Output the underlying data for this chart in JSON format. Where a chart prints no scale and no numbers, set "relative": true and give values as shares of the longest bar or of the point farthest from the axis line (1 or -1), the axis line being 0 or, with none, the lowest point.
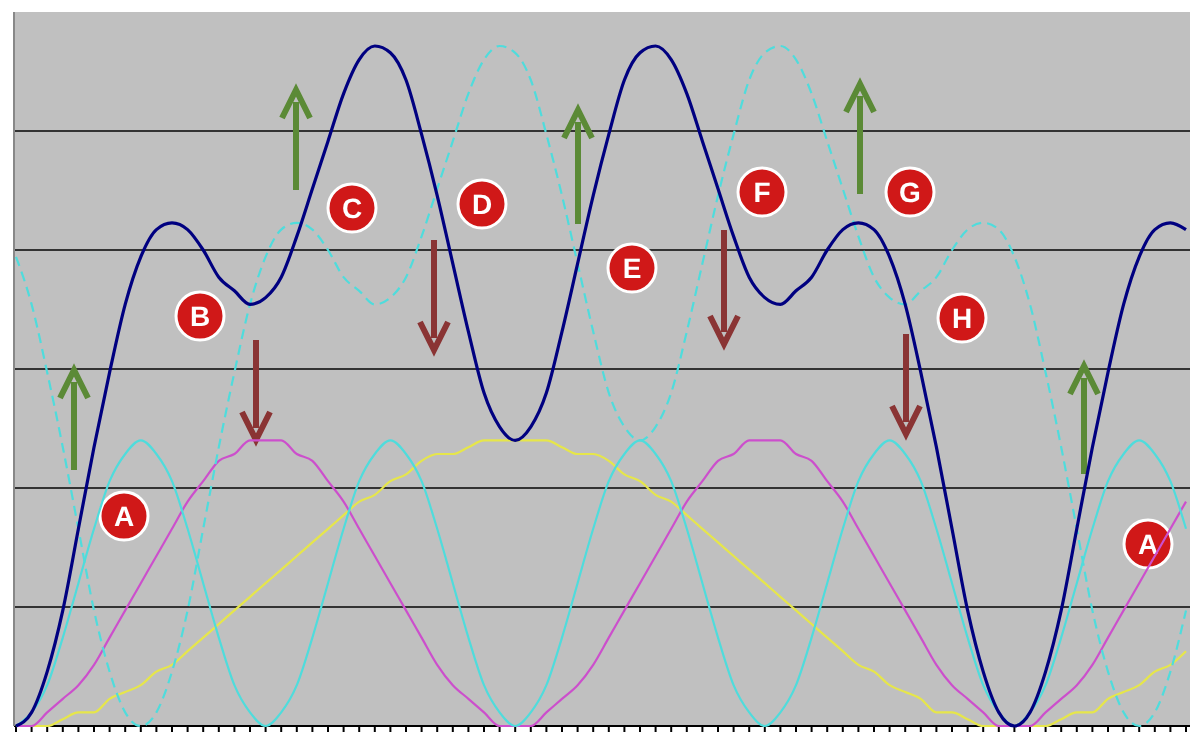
{
  "chart_data": {
    "type": "line",
    "relative": true,
    "grid": "y",
    "line_style": "solid",
    "categories": [
      null,
      null,
      null,
      null,
      null,
      null,
      null,
      null,
      null,
      null,
      null,
      null,
      null,
      null,
      null,
      null,
      null,
      null,
      null,
      null,
      null,
      null,
      null,
      null,
      null,
      null,
      null,
      null,
      null,
      null,
      null,
      null,
      null,
      null,
      null,
      null,
      null,
      null,
      null,
      null,
      null,
      null,
      null,
      null,
      null,
      null,
      null,
      null,
      null,
      null,
      null,
      null,
      null,
      null,
      null,
      null,
      null,
      null,
      null,
      null,
      null,
      null,
      null,
      null,
      null,
      null,
      null,
      null,
      null,
      null,
      null,
      null,
      null,
      null,
      null,
      null
    ],
    "series": [
      {
        "color": "#e6e64a",
        "values": [
          0,
          0,
          0,
          0.01,
          0.02,
          0.02,
          0.04,
          0.05,
          0.06,
          0.08,
          0.09,
          0.11,
          0.13,
          0.15,
          0.17,
          0.19,
          0.21,
          0.23,
          0.25,
          0.27,
          0.29,
          0.31,
          0.33,
          0.34,
          0.36,
          0.37,
          0.39,
          0.4,
          0.4,
          0.41,
          0.42,
          0.42,
          0.42,
          0.42,
          0.42,
          0.41,
          0.4,
          0.4,
          0.39,
          0.37,
          0.36,
          0.34,
          0.33,
          0.31,
          0.29,
          0.27,
          0.25,
          0.23,
          0.21,
          0.19,
          0.17,
          0.15,
          0.13,
          0.11,
          0.09,
          0.08,
          0.06,
          0.05,
          0.04,
          0.02,
          0.02,
          0.01,
          0,
          0,
          0,
          0,
          0,
          0.01,
          0.02,
          0.02,
          0.04,
          0.05,
          0.06,
          0.08,
          0.09,
          0.11
        ]
      },
      {
        "color": "#cc4fcc",
        "values": [
          0,
          0,
          0.02,
          0.04,
          0.06,
          0.09,
          0.13,
          0.17,
          0.21,
          0.25,
          0.29,
          0.33,
          0.36,
          0.39,
          0.4,
          0.42,
          0.42,
          0.42,
          0.4,
          0.39,
          0.36,
          0.33,
          0.29,
          0.25,
          0.21,
          0.17,
          0.13,
          0.09,
          0.06,
          0.04,
          0.02,
          0,
          0,
          0,
          0.02,
          0.04,
          0.06,
          0.09,
          0.13,
          0.17,
          0.21,
          0.25,
          0.29,
          0.33,
          0.36,
          0.39,
          0.4,
          0.42,
          0.42,
          0.42,
          0.4,
          0.39,
          0.36,
          0.33,
          0.29,
          0.25,
          0.21,
          0.17,
          0.13,
          0.09,
          0.06,
          0.04,
          0.02,
          0,
          0,
          0,
          0.02,
          0.04,
          0.06,
          0.09,
          0.13,
          0.17,
          0.21,
          0.25,
          0.29,
          0.33
        ]
      },
      {
        "color": "#4fdcdc",
        "values": [
          0,
          0.02,
          0.06,
          0.13,
          0.21,
          0.29,
          0.36,
          0.4,
          0.42,
          0.4,
          0.36,
          0.29,
          0.21,
          0.13,
          0.06,
          0.02,
          0,
          0.02,
          0.06,
          0.13,
          0.21,
          0.29,
          0.36,
          0.4,
          0.42,
          0.4,
          0.36,
          0.29,
          0.21,
          0.13,
          0.06,
          0.02,
          0,
          0.02,
          0.06,
          0.13,
          0.21,
          0.29,
          0.36,
          0.4,
          0.42,
          0.4,
          0.36,
          0.29,
          0.21,
          0.13,
          0.06,
          0.02,
          0,
          0.02,
          0.06,
          0.13,
          0.21,
          0.29,
          0.36,
          0.4,
          0.42,
          0.4,
          0.36,
          0.29,
          0.21,
          0.13,
          0.06,
          0.02,
          0,
          0.02,
          0.06,
          0.13,
          0.21,
          0.29,
          0.36,
          0.4,
          0.42,
          0.4,
          0.36,
          0.29
        ]
      },
      {
        "color": "#4fdcdc",
        "line_style": "dashed",
        "values": [
          0.69,
          0.62,
          0.52,
          0.41,
          0.29,
          0.17,
          0.08,
          0.02,
          0,
          0.02,
          0.08,
          0.17,
          0.29,
          0.41,
          0.52,
          0.62,
          0.69,
          0.73,
          0.74,
          0.73,
          0.7,
          0.66,
          0.64,
          0.62,
          0.63,
          0.66,
          0.72,
          0.79,
          0.86,
          0.93,
          0.98,
          1,
          0.99,
          0.95,
          0.87,
          0.78,
          0.68,
          0.58,
          0.49,
          0.44,
          0.42,
          0.44,
          0.49,
          0.58,
          0.68,
          0.78,
          0.87,
          0.95,
          0.99,
          1,
          0.98,
          0.93,
          0.86,
          0.79,
          0.72,
          0.66,
          0.63,
          0.62,
          0.64,
          0.66,
          0.7,
          0.73,
          0.74,
          0.73,
          0.69,
          0.62,
          0.52,
          0.41,
          0.29,
          0.17,
          0.08,
          0.02,
          0,
          0.02,
          0.08,
          0.17
        ]
      },
      {
        "color": "#000080",
        "values": [
          0,
          0.02,
          0.08,
          0.17,
          0.29,
          0.41,
          0.52,
          0.62,
          0.69,
          0.73,
          0.74,
          0.73,
          0.7,
          0.66,
          0.64,
          0.62,
          0.63,
          0.66,
          0.72,
          0.79,
          0.86,
          0.93,
          0.98,
          1,
          0.99,
          0.95,
          0.87,
          0.78,
          0.68,
          0.58,
          0.49,
          0.44,
          0.42,
          0.44,
          0.49,
          0.58,
          0.68,
          0.78,
          0.87,
          0.95,
          0.99,
          1,
          0.98,
          0.93,
          0.86,
          0.79,
          0.72,
          0.66,
          0.63,
          0.62,
          0.64,
          0.66,
          0.7,
          0.73,
          0.74,
          0.73,
          0.69,
          0.62,
          0.52,
          0.41,
          0.29,
          0.17,
          0.08,
          0.02,
          0,
          0.02,
          0.08,
          0.17,
          0.29,
          0.41,
          0.52,
          0.62,
          0.69,
          0.73,
          0.74,
          0.73
        ]
      }
    ],
    "annotations": [
      "A",
      "B",
      "C",
      "D",
      "E",
      "F",
      "G",
      "H",
      "A"
    ]
  }
}
